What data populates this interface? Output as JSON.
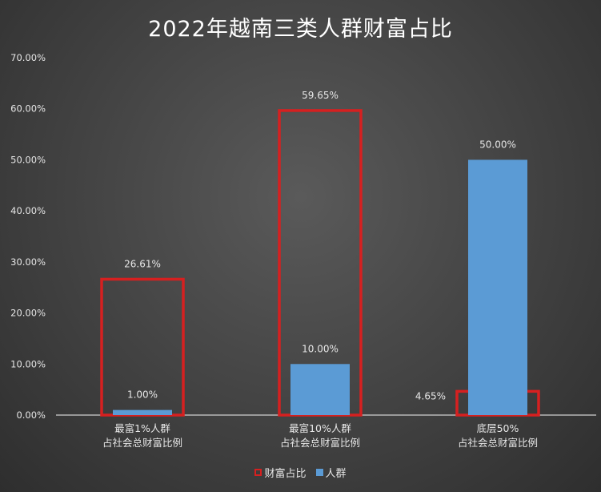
{
  "colors": {
    "wealth_outline": "#d62020",
    "population_fill": "#5b9bd5",
    "axis_text": "#e6e6e6"
  },
  "chart_data": {
    "type": "bar",
    "title": "2022年越南三类人群财富占比",
    "categories": [
      [
        "最富1%人群",
        "占社会总财富比例"
      ],
      [
        "最富10%人群",
        "占社会总财富比例"
      ],
      [
        "底层50%",
        "占社会总财富比例"
      ]
    ],
    "series": [
      {
        "name": "财富占比",
        "values": [
          26.61,
          59.65,
          4.65
        ],
        "labels": [
          "26.61%",
          "59.65%",
          "4.65%"
        ],
        "style": "outline",
        "color": "#d62020"
      },
      {
        "name": "人群",
        "values": [
          1.0,
          10.0,
          50.0
        ],
        "labels": [
          "1.00%",
          "10.00%",
          "50.00%"
        ],
        "style": "fill",
        "color": "#5b9bd5"
      }
    ],
    "ylim": [
      0,
      70
    ],
    "yticks": [
      "0.00%",
      "10.00%",
      "20.00%",
      "30.00%",
      "40.00%",
      "50.00%",
      "60.00%",
      "70.00%"
    ],
    "ytick_values": [
      0,
      10,
      20,
      30,
      40,
      50,
      60,
      70
    ],
    "grid": false,
    "legend_position": "bottom"
  }
}
